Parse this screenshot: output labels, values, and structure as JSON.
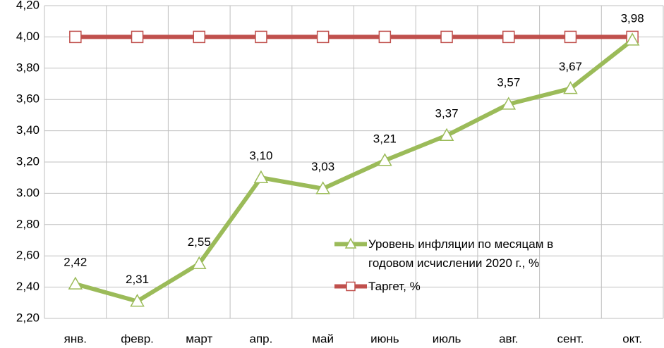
{
  "chart_data": {
    "type": "line",
    "categories": [
      "янв.",
      "февр.",
      "март",
      "апр.",
      "май",
      "июнь",
      "июль",
      "авг.",
      "сент.",
      "окт."
    ],
    "series": [
      {
        "name": "Уровень инфляции по месяцам в годовом исчислении 2020 г., %",
        "color": "#9bbb59",
        "marker": "triangle",
        "values": [
          2.42,
          2.31,
          2.55,
          3.1,
          3.03,
          3.21,
          3.37,
          3.57,
          3.67,
          3.98
        ],
        "value_labels": [
          "2,42",
          "2,31",
          "2,55",
          "3,10",
          "3,03",
          "3,21",
          "3,37",
          "3,57",
          "3,67",
          "3,98"
        ]
      },
      {
        "name": "Таргет, %",
        "color": "#c0504d",
        "marker": "square",
        "values": [
          4.0,
          4.0,
          4.0,
          4.0,
          4.0,
          4.0,
          4.0,
          4.0,
          4.0,
          4.0
        ]
      }
    ],
    "ylim": [
      2.2,
      4.2
    ],
    "yticks": [
      {
        "value": 2.2,
        "label": "2,20"
      },
      {
        "value": 2.4,
        "label": "2,40"
      },
      {
        "value": 2.6,
        "label": "2,60"
      },
      {
        "value": 2.8,
        "label": "2,80"
      },
      {
        "value": 3.0,
        "label": "3.00"
      },
      {
        "value": 3.2,
        "label": "3,20"
      },
      {
        "value": 3.4,
        "label": "3,40"
      },
      {
        "value": 3.6,
        "label": "3,60"
      },
      {
        "value": 3.8,
        "label": "3,80"
      },
      {
        "value": 4.0,
        "label": "4,00"
      },
      {
        "value": 4.2,
        "label": "4,20"
      }
    ],
    "grid": true
  }
}
